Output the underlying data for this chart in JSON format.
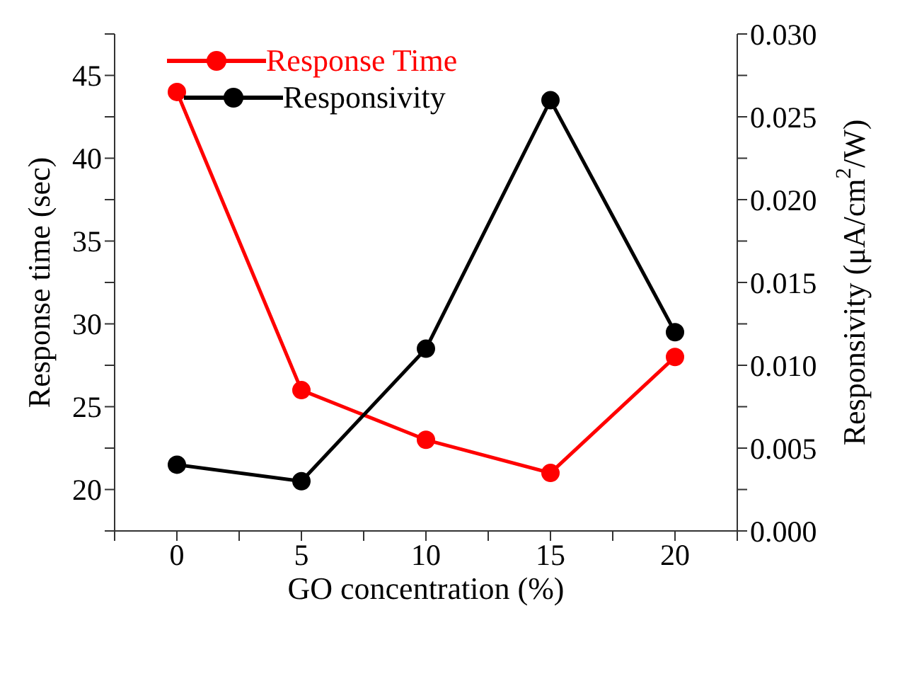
{
  "chart_data": {
    "type": "line",
    "xlabel": "GO concentration (%)",
    "ylabel": "Response time (sec)",
    "y2label": "Responsivity (μA/cm$^{2}$/W)",
    "x": [
      0,
      5,
      10,
      15,
      20
    ],
    "series": [
      {
        "name": "Response Time",
        "color": "#ff0000",
        "values": [
          44,
          26,
          23,
          21,
          28
        ]
      },
      {
        "name": "Responsivity",
        "color": "#000000",
        "axis": "y2",
        "values": [
          0.004,
          0.003,
          0.011,
          0.026,
          0.012
        ]
      }
    ],
    "xlim": [
      -2.5,
      22.5
    ],
    "xticks": [
      {
        "value": -2.5,
        "label": null
      },
      0,
      {
        "value": 2.5,
        "label": null
      },
      5,
      {
        "value": 7.5,
        "label": null
      },
      10,
      {
        "value": 12.5,
        "label": null
      },
      15,
      {
        "value": 17.5,
        "label": null
      },
      20,
      {
        "value": 22.5,
        "label": null
      }
    ],
    "ylim": [
      17.5,
      47.5
    ],
    "yticks": [
      {
        "value": 17.5,
        "label": null
      },
      20,
      {
        "value": 22.5,
        "label": null
      },
      25,
      {
        "value": 27.5,
        "label": null
      },
      30,
      {
        "value": 32.5,
        "label": null
      },
      35,
      {
        "value": 37.5,
        "label": null
      },
      40,
      {
        "value": 42.5,
        "label": null
      },
      45,
      {
        "value": 47.5,
        "label": null
      }
    ],
    "y2lim": [
      0,
      0.03
    ],
    "y2ticks": [
      {
        "value": 0,
        "label": "0.000"
      },
      {
        "value": 0.0025,
        "label": null
      },
      {
        "value": 0.005,
        "label": "0.005"
      },
      {
        "value": 0.0075,
        "label": null
      },
      {
        "value": 0.01,
        "label": "0.010"
      },
      {
        "value": 0.0125,
        "label": null
      },
      {
        "value": 0.015,
        "label": "0.015"
      },
      {
        "value": 0.0175,
        "label": null
      },
      {
        "value": 0.02,
        "label": "0.020"
      },
      {
        "value": 0.0225,
        "label": null
      },
      {
        "value": 0.025,
        "label": "0.025"
      },
      {
        "value": 0.0275,
        "label": null
      },
      {
        "value": 0.03,
        "label": "0.030"
      }
    ],
    "legend": "top left",
    "marker": "circle",
    "line_style": "solid",
    "grid": false
  }
}
